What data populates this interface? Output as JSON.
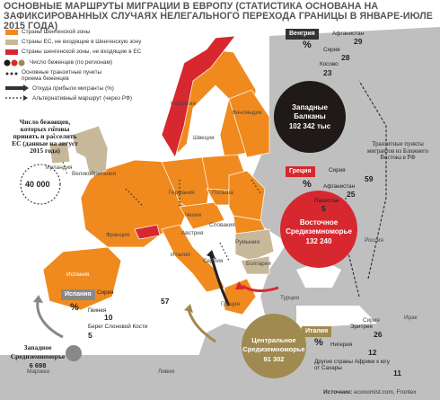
{
  "title": "Основные маршруты миграции в Европу (статистика основана на зафиксированных случаях нелегального перехода границы в январе-июле 2015 года)",
  "legend": {
    "schengen": "Страны Шенгенской зоны",
    "eu_not_schengen": "Страны ЕС, не входящие в Шенгенскую зону",
    "schengen_not_eu": "Страны шенгенской зоны, не входящие в ЕС",
    "refugees": "Число беженцев (по регионам)",
    "transit": "Основные транзитные пункты приема беженцев",
    "origin": "Откуда прибыли мигранты (%)",
    "alt_route": "Альтернативный маршрут (через РФ)"
  },
  "colors": {
    "schengen": "#f08a1e",
    "eu_not_schengen": "#c8b89a",
    "schengen_not_eu": "#d7282f",
    "non_eu": "#bdbdbd",
    "sea": "#ffffff",
    "circle_dark": "#1f1a17",
    "circle_red": "#d7282f",
    "circle_olive": "#a08a4f"
  },
  "countries": {
    "norway": "Норвегия",
    "sweden": "Швеция",
    "finland": "Финляндия",
    "uk": "Великобритания",
    "ireland": "Ирландия",
    "germany": "Германия",
    "poland": "Польша",
    "czech": "Чехия",
    "slovakia": "Словакия",
    "austria": "Австрия",
    "france": "Франция",
    "spain": "Испания",
    "italy": "Италия",
    "romania": "Румыния",
    "bulgaria": "Болгария",
    "serbia": "Сербия",
    "greece": "Греция",
    "turkey": "Турция",
    "russia": "Россия",
    "iraq": "Ирак",
    "syria_c": "Сирия",
    "libya": "Ливия",
    "morocco": "Марокко"
  },
  "uk_box": {
    "text": "Число беженцев, которых готовы принять и расселить ЕС (данные на август 2015 года)",
    "value": "40 000"
  },
  "transit_note": "Транзитные пункты мигрантов из Ближнего Востока в РФ",
  "routes": {
    "west_balkans": {
      "name": "Западные Балканы",
      "value": "102 342 тыс",
      "origin_country": "Венгрия",
      "items": [
        {
          "label": "Афганистан",
          "value": "29"
        },
        {
          "label": "Сирия",
          "value": "28"
        },
        {
          "label": "Косово",
          "value": "23"
        }
      ]
    },
    "east_med": {
      "name": "Восточное Средиземноморье",
      "value": "132 240",
      "origin_country": "Греция",
      "items": [
        {
          "label": "Сирия",
          "value": "59"
        },
        {
          "label": "Афганистан",
          "value": "25"
        },
        {
          "label": "Пакистан",
          "value": "5"
        }
      ]
    },
    "central_med": {
      "name": "Центральное Средиземноморье",
      "value": "91 302",
      "origin_country": "Италия",
      "items": [
        {
          "label": "Эритрея",
          "value": "26"
        },
        {
          "label": "Нигерия",
          "value": "12"
        },
        {
          "label": "Другие страны Африки к югу от Сахары",
          "value": "11"
        }
      ]
    },
    "west_med": {
      "name": "Западное Средиземноморье",
      "value": "6 698",
      "origin_country": "Испания",
      "items": [
        {
          "label": "Сирия",
          "value": "57"
        },
        {
          "label": "Гвинея",
          "value": "10"
        },
        {
          "label": "Берег Слоновой Кости",
          "value": "5"
        }
      ]
    }
  },
  "percent_symbol": "%",
  "source_label": "Источник:",
  "source_value": "economist.com, Frontex"
}
